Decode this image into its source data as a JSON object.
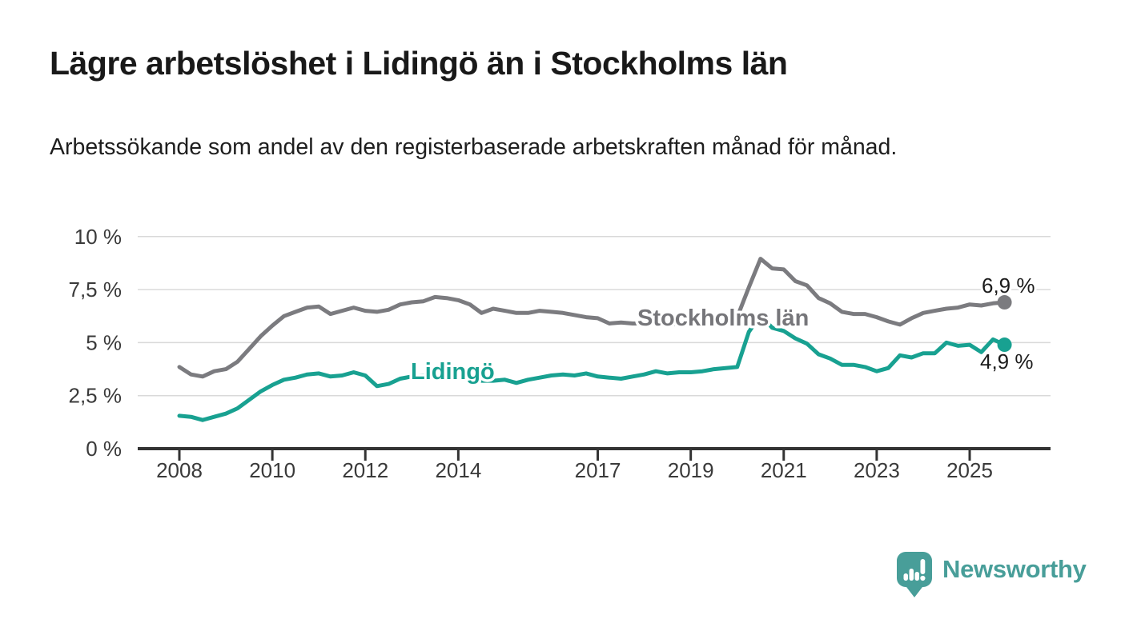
{
  "header": {
    "title": "Lägre arbetslöshet i Lidingö än i Stockholms län",
    "subtitle": "Arbetssökande som andel av den registerbaserade arbetskraften månad för månad."
  },
  "chart_data": {
    "type": "line",
    "unit": "%",
    "grid": "horizontal",
    "legend": "inline-labels",
    "x_axis": {
      "ticks": [
        2008,
        2010,
        2012,
        2014,
        2017,
        2019,
        2021,
        2023,
        2025
      ],
      "range_years": [
        2007.1,
        2026.75
      ]
    },
    "y_axis": {
      "ticks": [
        0,
        2.5,
        5,
        7.5,
        10
      ],
      "tick_labels": [
        "0 %",
        "2,5 %",
        "5 %",
        "7,5 %",
        "10 %"
      ],
      "range": [
        0,
        10
      ]
    },
    "x": [
      2008.0,
      2008.25,
      2008.5,
      2008.75,
      2009.0,
      2009.25,
      2009.5,
      2009.75,
      2010.0,
      2010.25,
      2010.5,
      2010.75,
      2011.0,
      2011.25,
      2011.5,
      2011.75,
      2012.0,
      2012.25,
      2012.5,
      2012.75,
      2013.0,
      2013.25,
      2013.5,
      2013.75,
      2014.0,
      2014.25,
      2014.5,
      2014.75,
      2015.0,
      2015.25,
      2015.5,
      2015.75,
      2016.0,
      2016.25,
      2016.5,
      2016.75,
      2017.0,
      2017.25,
      2017.5,
      2017.75,
      2018.0,
      2018.25,
      2018.5,
      2018.75,
      2019.0,
      2019.25,
      2019.5,
      2019.75,
      2020.0,
      2020.25,
      2020.5,
      2020.75,
      2021.0,
      2021.25,
      2021.5,
      2021.75,
      2022.0,
      2022.25,
      2022.5,
      2022.75,
      2023.0,
      2023.25,
      2023.5,
      2023.75,
      2024.0,
      2024.25,
      2024.5,
      2024.75,
      2025.0,
      2025.25,
      2025.5,
      2025.75
    ],
    "series": [
      {
        "name": "Stockholms län",
        "color": "#7b7b7f",
        "label_color": "#76767a",
        "end_label": "6,9 %",
        "end_value": 6.9,
        "values": [
          3.85,
          3.5,
          3.4,
          3.65,
          3.75,
          4.1,
          4.7,
          5.3,
          5.8,
          6.25,
          6.45,
          6.65,
          6.7,
          6.35,
          6.5,
          6.65,
          6.5,
          6.45,
          6.55,
          6.8,
          6.9,
          6.95,
          7.15,
          7.1,
          7.0,
          6.8,
          6.4,
          6.6,
          6.5,
          6.4,
          6.4,
          6.5,
          6.45,
          6.4,
          6.3,
          6.2,
          6.15,
          5.9,
          5.95,
          5.9,
          5.9,
          5.95,
          5.85,
          5.9,
          5.95,
          5.9,
          6.05,
          6.1,
          6.2,
          7.6,
          8.95,
          8.5,
          8.45,
          7.9,
          7.7,
          7.1,
          6.85,
          6.45,
          6.35,
          6.35,
          6.2,
          6.0,
          5.85,
          6.15,
          6.4,
          6.5,
          6.6,
          6.65,
          6.8,
          6.75,
          6.85,
          6.9
        ]
      },
      {
        "name": "Lidingö",
        "color": "#18a191",
        "label_color": "#18a191",
        "end_label": "4,9 %",
        "end_value": 4.9,
        "values": [
          1.55,
          1.5,
          1.35,
          1.5,
          1.65,
          1.9,
          2.3,
          2.7,
          3.0,
          3.25,
          3.35,
          3.5,
          3.55,
          3.4,
          3.45,
          3.6,
          3.45,
          2.95,
          3.05,
          3.3,
          3.4,
          3.45,
          3.5,
          3.45,
          3.4,
          3.3,
          3.2,
          3.2,
          3.25,
          3.1,
          3.25,
          3.35,
          3.45,
          3.5,
          3.45,
          3.55,
          3.4,
          3.35,
          3.3,
          3.4,
          3.5,
          3.65,
          3.55,
          3.6,
          3.6,
          3.65,
          3.75,
          3.8,
          3.85,
          5.5,
          6.3,
          5.7,
          5.55,
          5.2,
          4.95,
          4.45,
          4.25,
          3.95,
          3.95,
          3.85,
          3.65,
          3.8,
          4.4,
          4.3,
          4.5,
          4.5,
          5.0,
          4.85,
          4.9,
          4.55,
          5.15,
          4.9
        ]
      }
    ]
  },
  "footer": {
    "brand": "Newsworthy",
    "brand_color": "#489e99",
    "logo_icon": "speech-bubble-bar-chart-icon"
  }
}
